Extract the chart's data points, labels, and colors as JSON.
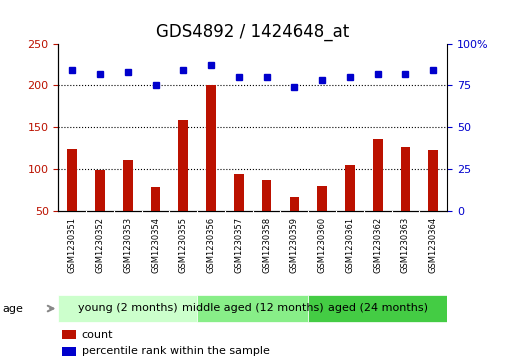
{
  "title": "GDS4892 / 1424648_at",
  "samples": [
    "GSM1230351",
    "GSM1230352",
    "GSM1230353",
    "GSM1230354",
    "GSM1230355",
    "GSM1230356",
    "GSM1230357",
    "GSM1230358",
    "GSM1230359",
    "GSM1230360",
    "GSM1230361",
    "GSM1230362",
    "GSM1230363",
    "GSM1230364"
  ],
  "counts": [
    124,
    99,
    111,
    78,
    159,
    200,
    94,
    86,
    66,
    79,
    105,
    136,
    126,
    122
  ],
  "percentiles": [
    84,
    82,
    83,
    75,
    84,
    87,
    80,
    80,
    74,
    78,
    80,
    82,
    82,
    84
  ],
  "bar_color": "#bb1100",
  "dot_color": "#0000cc",
  "left_ylim": [
    50,
    250
  ],
  "left_yticks": [
    50,
    100,
    150,
    200,
    250
  ],
  "right_ylim": [
    0,
    100
  ],
  "right_yticks": [
    0,
    25,
    50,
    75,
    100
  ],
  "right_yticklabels": [
    "0",
    "25",
    "50",
    "75",
    "100%"
  ],
  "hlines": [
    100,
    150,
    200
  ],
  "groups": [
    {
      "label": "young (2 months)",
      "start": 0,
      "end": 4,
      "color": "#ccffcc"
    },
    {
      "label": "middle aged (12 months)",
      "start": 5,
      "end": 8,
      "color": "#99ee99"
    },
    {
      "label": "aged (24 months)",
      "start": 9,
      "end": 13,
      "color": "#44cc44"
    }
  ],
  "age_label": "age",
  "legend_count_label": "count",
  "legend_percentile_label": "percentile rank within the sample",
  "title_fontsize": 12,
  "tick_fontsize": 8,
  "sample_fontsize": 6,
  "group_fontsize": 8,
  "bar_width": 0.35
}
